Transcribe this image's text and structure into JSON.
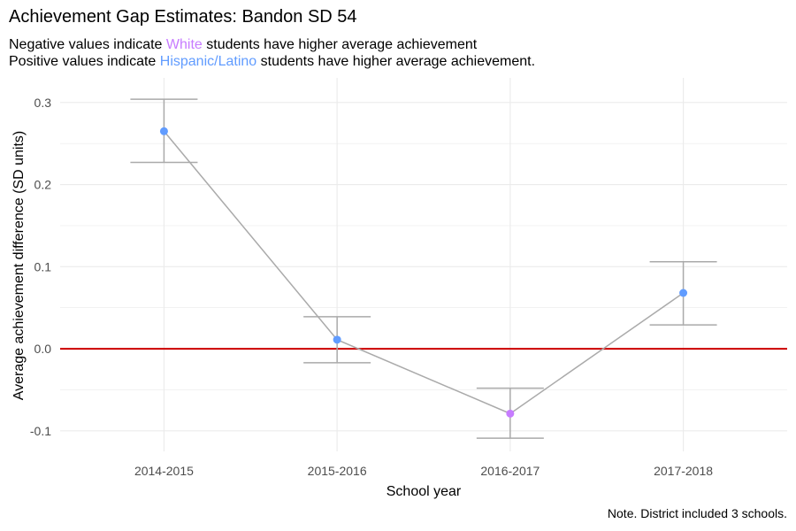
{
  "chart_data": {
    "type": "line",
    "title": "Achievement Gap Estimates: Bandon SD 54",
    "subtitle": {
      "line1": {
        "prefix": "Negative values indicate ",
        "group": "White",
        "suffix": " students have higher average achievement"
      },
      "line2": {
        "prefix": "Positive values indicate ",
        "group": "Hispanic/Latino",
        "suffix": " students have higher average achievement."
      }
    },
    "xlabel": "School year",
    "ylabel": "Average achievement difference (SD units)",
    "categories": [
      "2014-2015",
      "2015-2016",
      "2016-2017",
      "2017-2018"
    ],
    "values": [
      0.265,
      0.011,
      -0.079,
      0.068
    ],
    "ci_lower": [
      0.227,
      -0.017,
      -0.109,
      0.029
    ],
    "ci_upper": [
      0.304,
      0.039,
      -0.048,
      0.106
    ],
    "ylim": [
      -0.125,
      0.33
    ],
    "yticks": [
      -0.1,
      0.0,
      0.1,
      0.2,
      0.3
    ],
    "ytick_labels": [
      "-0.1",
      "0.0",
      "0.1",
      "0.2",
      "0.3"
    ],
    "reference_line": 0,
    "grid": true,
    "note": "Note. District included 3 schools."
  },
  "colors": {
    "positive": "#619cff",
    "negative": "#c77cff",
    "line": "#aaaaaa",
    "errorbar": "#aaaaaa",
    "reference": "#cc0000",
    "grid": "#ebebeb"
  }
}
